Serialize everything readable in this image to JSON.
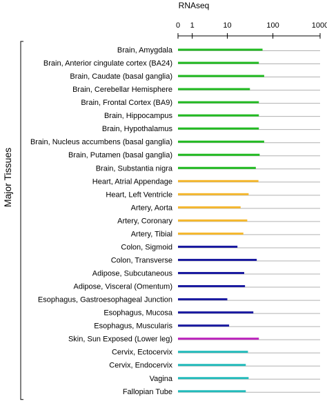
{
  "chart_data": {
    "type": "bar",
    "orientation": "horizontal",
    "xlabel": "RNAseq",
    "x_scale": "log1p",
    "x_ticks": [
      0,
      1,
      10,
      100,
      1000
    ],
    "xlim": [
      0,
      1000
    ],
    "grid": "horizontal row lines",
    "group_label": "Major Tissues",
    "categories": [
      "Brain, Amygdala",
      "Brain, Anterior cingulate cortex (BA24)",
      "Brain, Caudate (basal ganglia)",
      "Brain, Cerebellar Hemisphere",
      "Brain, Frontal Cortex (BA9)",
      "Brain, Hippocampus",
      "Brain, Hypothalamus",
      "Brain, Nucleus accumbens (basal ganglia)",
      "Brain, Putamen (basal ganglia)",
      "Brain, Substantia nigra",
      "Heart, Atrial Appendage",
      "Heart, Left Ventricle",
      "Artery, Aorta",
      "Artery, Coronary",
      "Artery, Tibial",
      "Colon, Sigmoid",
      "Colon, Transverse",
      "Adipose, Subcutaneous",
      "Adipose, Visceral (Omentum)",
      "Esophagus, Gastroesophageal Junction",
      "Esophagus, Mucosa",
      "Esophagus, Muscularis",
      "Skin, Sun Exposed (Lower leg)",
      "Cervix, Ectocervix",
      "Cervix, Endocervix",
      "Vagina",
      "Fallopian Tube"
    ],
    "values": [
      60,
      50,
      65,
      32,
      50,
      50,
      50,
      65,
      52,
      43,
      49,
      30,
      20,
      28,
      23,
      17,
      45,
      24,
      25,
      10,
      38,
      11,
      50,
      29,
      26,
      30,
      26
    ],
    "colors": [
      "#22bb22",
      "#22bb22",
      "#22bb22",
      "#22bb22",
      "#22bb22",
      "#22bb22",
      "#22bb22",
      "#22bb22",
      "#22bb22",
      "#22bb22",
      "#f5b82e",
      "#f5b82e",
      "#f5b82e",
      "#f5b82e",
      "#f5b82e",
      "#1a1aa0",
      "#1a1aa0",
      "#1a1aa0",
      "#1a1aa0",
      "#1a1aa0",
      "#1a1aa0",
      "#1a1aa0",
      "#bb22bb",
      "#22bbbb",
      "#22bbbb",
      "#22bbbb",
      "#22bbbb"
    ],
    "row_line_color": "#b0b0b0"
  }
}
